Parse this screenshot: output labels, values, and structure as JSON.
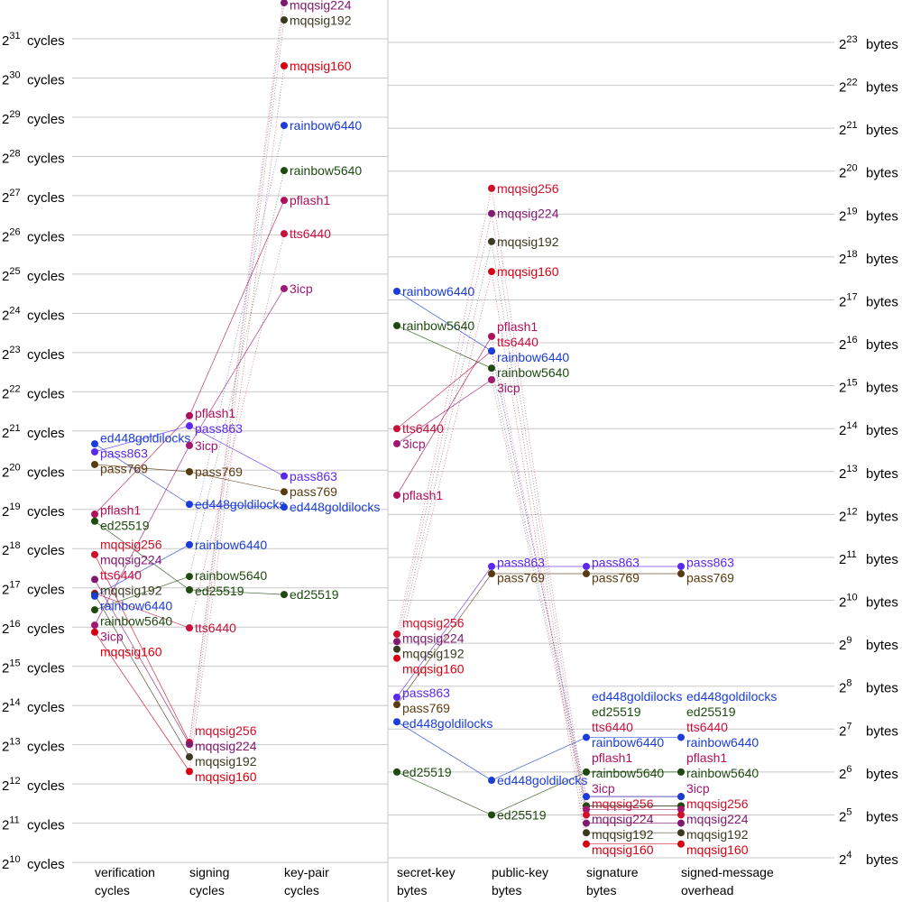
{
  "chart_data": [
    {
      "type": "line",
      "title": "",
      "y_scale": "log2",
      "y_unit": "cycles",
      "ytick_base": "2",
      "ytick_exponents": [
        10,
        11,
        12,
        13,
        14,
        15,
        16,
        17,
        18,
        19,
        20,
        21,
        22,
        23,
        24,
        25,
        26,
        27,
        28,
        29,
        30,
        31
      ],
      "grid": true,
      "columns": [
        {
          "lines": [
            "verification",
            "cycles"
          ]
        },
        {
          "lines": [
            "signing",
            "cycles"
          ]
        },
        {
          "lines": [
            "key-pair",
            "cycles"
          ]
        }
      ],
      "series": [
        {
          "name": "ed448goldilocks",
          "color": "#1a3cd8",
          "values": [
            1670000,
            573600,
            546300
          ]
        },
        {
          "name": "pass863",
          "color": "#5a28f0",
          "values": [
            1450000,
            2294000,
            945300
          ]
        },
        {
          "name": "pass769",
          "color": "#5a3a10",
          "values": [
            1160000,
            1020000,
            716200
          ]
        },
        {
          "name": "pflash1",
          "color": "#b0105a",
          "values": [
            482000,
            2747000,
            123500000
          ]
        },
        {
          "name": "ed25519",
          "color": "#1e4a10",
          "values": [
            426000,
            126600,
            116500
          ]
        },
        {
          "name": "mqqsig256",
          "color": "#d0102a",
          "values": [
            236000,
            8540,
            4930000000
          ]
        },
        {
          "name": "mqqsig224",
          "color": "#801a70",
          "values": [
            152000,
            8250,
            4060000000
          ]
        },
        {
          "name": "tts6440",
          "color": "#c8103c",
          "values": [
            119000,
            64600,
            68520000
          ]
        },
        {
          "name": "mqqsig192",
          "color": "#3a3a20",
          "values": [
            116500,
            6610,
            2995000000
          ]
        },
        {
          "name": "rainbow6440",
          "color": "#1a3cd8",
          "values": [
            113300,
            281000,
            464100000
          ]
        },
        {
          "name": "rainbow5640",
          "color": "#1e4a10",
          "values": [
            88900,
            160300,
            209100000
          ]
        },
        {
          "name": "3icp",
          "color": "#a01870",
          "values": [
            67800,
            1623000,
            25970000
          ]
        },
        {
          "name": "mqqsig160",
          "color": "#d80010",
          "values": [
            59900,
            5110,
            1331000000
          ]
        }
      ]
    },
    {
      "type": "line",
      "title": "",
      "y_scale": "log2",
      "y_unit": "bytes",
      "ytick_base": "2",
      "ytick_exponents": [
        4,
        5,
        6,
        7,
        8,
        9,
        10,
        11,
        12,
        13,
        14,
        15,
        16,
        17,
        18,
        19,
        20,
        21,
        22,
        23
      ],
      "grid": true,
      "columns": [
        {
          "lines": [
            "secret-key",
            "bytes"
          ]
        },
        {
          "lines": [
            "public-key",
            "bytes"
          ]
        },
        {
          "lines": [
            "signature",
            "bytes"
          ]
        },
        {
          "lines": [
            "signed-message",
            "overhead"
          ]
        }
      ],
      "series": [
        {
          "name": "ed448goldilocks",
          "color": "#1a3cd8",
          "values": [
            144,
            56,
            112,
            112
          ]
        },
        {
          "name": "pass863",
          "color": "#5a28f0",
          "values": [
            214,
            1770,
            1770,
            1770
          ]
        },
        {
          "name": "pass769",
          "color": "#5a3a10",
          "values": [
            190,
            1574,
            1574,
            1574
          ]
        },
        {
          "name": "pflash1",
          "color": "#b0105a",
          "values": [
            5595,
            72700,
            37,
            37
          ]
        },
        {
          "name": "ed25519",
          "color": "#1e4a10",
          "values": [
            64,
            32,
            64,
            64
          ]
        },
        {
          "name": "mqqsig256",
          "color": "#d0102a",
          "values": [
            593,
            794800,
            32,
            32
          ]
        },
        {
          "name": "mqqsig224",
          "color": "#801a70",
          "values": [
            526,
            529000,
            28,
            28
          ]
        },
        {
          "name": "tts6440",
          "color": "#c8103c",
          "values": [
            16384,
            57400,
            43,
            43
          ]
        },
        {
          "name": "mqqsig192",
          "color": "#3a3a20",
          "values": [
            465,
            336400,
            24,
            24
          ]
        },
        {
          "name": "rainbow6440",
          "color": "#1a3cd8",
          "values": [
            150600,
            57400,
            43,
            43
          ]
        },
        {
          "name": "rainbow5640",
          "color": "#1e4a10",
          "values": [
            86500,
            43500,
            37,
            37
          ]
        },
        {
          "name": "3icp",
          "color": "#a01870",
          "values": [
            12850,
            36100,
            35,
            35
          ]
        },
        {
          "name": "mqqsig160",
          "color": "#d80010",
          "values": [
            402,
            207100,
            20,
            20
          ]
        }
      ]
    }
  ]
}
